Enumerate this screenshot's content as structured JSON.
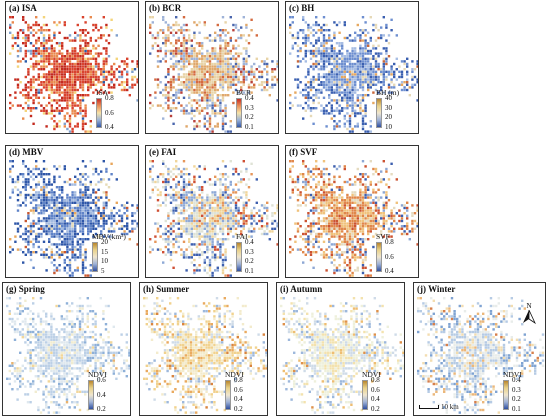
{
  "panels": [
    {
      "title": "(a) ISA",
      "legend": {
        "title": "ISA",
        "ticks": [
          "0.8",
          "0.6",
          "0.4"
        ]
      },
      "colors": [
        "#2b5ba8",
        "#7fa0cc",
        "#f4d47a",
        "#e98a4f",
        "#d9432e",
        "#c32a1f"
      ],
      "weights": [
        0.05,
        0.08,
        0.12,
        0.2,
        0.3,
        0.25
      ],
      "blank": "none"
    },
    {
      "title": "(b) BCR",
      "legend": {
        "title": "BCR",
        "ticks": [
          "0.4",
          "0.3",
          "0.2",
          "0.1"
        ]
      },
      "colors": [
        "#4a66ad",
        "#9fb3d8",
        "#e8d4a8",
        "#e0a86c",
        "#d46a40",
        "#b8403a"
      ],
      "weights": [
        0.12,
        0.25,
        0.22,
        0.2,
        0.13,
        0.08
      ],
      "blank": "none"
    },
    {
      "title": "(c) BH",
      "legend": {
        "title": "BH (m)",
        "ticks": [
          "40",
          "30",
          "20",
          "10"
        ]
      },
      "colors": [
        "#3a5fb0",
        "#6e8fd0",
        "#a7bde3",
        "#e6d9b8",
        "#e6a860",
        "#c8683a"
      ],
      "weights": [
        0.35,
        0.3,
        0.17,
        0.08,
        0.06,
        0.04
      ],
      "blank": "none"
    },
    {
      "title": "(d) MBV",
      "legend": {
        "title": "MBV(km³)",
        "ticks": [
          "20",
          "15",
          "10",
          "5"
        ]
      },
      "colors": [
        "#2e56a8",
        "#5f83c8",
        "#a4bbe0",
        "#e6dbb6",
        "#e8a65c",
        "#c8572f"
      ],
      "weights": [
        0.4,
        0.28,
        0.15,
        0.07,
        0.06,
        0.04
      ],
      "blank": "none"
    },
    {
      "title": "(e) FAI",
      "legend": {
        "title": "FAI",
        "ticks": [
          "0.4",
          "0.3",
          "0.2",
          "0.1"
        ]
      },
      "colors": [
        "#3d5fae",
        "#8ea9d6",
        "#dfe3d6",
        "#f0d59a",
        "#e6965a",
        "#cf4f34"
      ],
      "weights": [
        0.2,
        0.25,
        0.2,
        0.15,
        0.12,
        0.08
      ],
      "blank": "none"
    },
    {
      "title": "(f) SVF",
      "legend": {
        "title": "SVF",
        "ticks": [
          "0.8",
          "0.6",
          "0.4"
        ]
      },
      "colors": [
        "#3d5fae",
        "#8da7d4",
        "#e5dbc0",
        "#f0c27c",
        "#e0874a",
        "#cc5231"
      ],
      "weights": [
        0.12,
        0.12,
        0.14,
        0.2,
        0.24,
        0.18
      ],
      "blank": "none"
    },
    {
      "title": "(g) Spring",
      "legend": {
        "title": "NDVI",
        "ticks": [
          "0.6",
          "0.4",
          "0.2"
        ]
      },
      "colors": [
        "#8eb0d8",
        "#bcd0e6",
        "#dfe8ee",
        "#f1ecd0",
        "#f2d79a",
        "#e8b26e"
      ],
      "weights": [
        0.2,
        0.35,
        0.25,
        0.12,
        0.06,
        0.02
      ],
      "blank": "none"
    },
    {
      "title": "(h) Summer",
      "legend": {
        "title": "NDVI",
        "ticks": [
          "0.8",
          "0.6",
          "0.4",
          "0.2"
        ]
      },
      "colors": [
        "#9db8dc",
        "#cfdbe8",
        "#f3ebcc",
        "#f1d28e",
        "#e9aa5f",
        "#d9843e"
      ],
      "weights": [
        0.12,
        0.2,
        0.3,
        0.22,
        0.12,
        0.04
      ],
      "blank": "none"
    },
    {
      "title": "(i) Autumn",
      "legend": {
        "title": "NDVI",
        "ticks": [
          "0.8",
          "0.6",
          "0.4",
          "0.2"
        ]
      },
      "colors": [
        "#9db8dc",
        "#cfdbe8",
        "#eef0dc",
        "#f3e2ae",
        "#eebd72",
        "#de914a"
      ],
      "weights": [
        0.15,
        0.28,
        0.3,
        0.16,
        0.08,
        0.03
      ],
      "blank": "none"
    },
    {
      "title": "(j) Winter",
      "legend": {
        "title": "NDVI",
        "ticks": [
          "0.4",
          "0.3",
          "0.2",
          "0.1"
        ]
      },
      "colors": [
        "#7fa3d2",
        "#b6cbe4",
        "#e8ecea",
        "#f3ddb0",
        "#ebb77a",
        "#d67e4b"
      ],
      "weights": [
        0.25,
        0.3,
        0.22,
        0.12,
        0.08,
        0.03
      ],
      "blank": "none"
    }
  ],
  "legend_gradients": {
    "isa": "#c62d24,#e9925a,#f6e3a8,#9bb3d8,#3156a6",
    "div": "#b8862e,#e9d28a,#efe6cf,#9fb2d6,#2f4f9f"
  },
  "north_label": "N",
  "scale_label": "10 km"
}
